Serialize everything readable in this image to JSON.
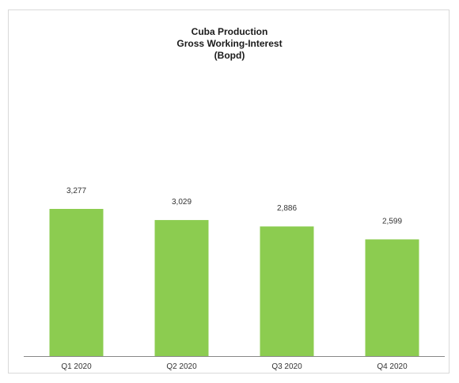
{
  "chart_data": {
    "type": "bar",
    "title_lines": [
      "Cuba Production",
      "Gross Working-Interest",
      "(Bopd)"
    ],
    "categories": [
      "Q1 2020",
      "Q2 2020",
      "Q3 2020",
      "Q4 2020"
    ],
    "values": [
      3277,
      3029,
      2886,
      2599
    ],
    "data_labels": [
      "3,277",
      "3,029",
      "2,886",
      "2,599"
    ],
    "xlabel": "",
    "ylabel": "",
    "ylim": [
      0,
      6000
    ],
    "grid": false,
    "legend": "none",
    "bar_color": "#8ccc50",
    "axis_color": "#888888"
  }
}
